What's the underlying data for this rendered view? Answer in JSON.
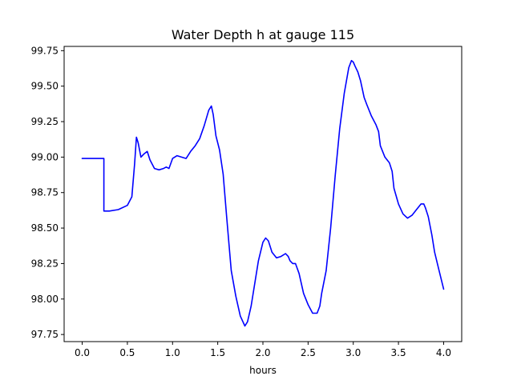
{
  "chart_data": {
    "type": "line",
    "title": "Water Depth h at gauge 115",
    "xlabel": "hours",
    "ylabel": "",
    "xlim": [
      -0.2,
      4.2
    ],
    "ylim": [
      97.7,
      99.78
    ],
    "xticks": [
      0.0,
      0.5,
      1.0,
      1.5,
      2.0,
      2.5,
      3.0,
      3.5,
      4.0
    ],
    "xtick_labels": [
      "0.0",
      "0.5",
      "1.0",
      "1.5",
      "2.0",
      "2.5",
      "3.0",
      "3.5",
      "4.0"
    ],
    "yticks": [
      97.75,
      98.0,
      98.25,
      98.5,
      98.75,
      99.0,
      99.25,
      99.5,
      99.75
    ],
    "ytick_labels": [
      "97.75",
      "98.00",
      "98.25",
      "98.50",
      "98.75",
      "99.00",
      "99.25",
      "99.50",
      "99.75"
    ],
    "grid": false,
    "series": [
      {
        "color": "#0000ff",
        "x": [
          0.0,
          0.24,
          0.24,
          0.3,
          0.4,
          0.5,
          0.55,
          0.58,
          0.6,
          0.62,
          0.65,
          0.68,
          0.72,
          0.75,
          0.8,
          0.85,
          0.9,
          0.93,
          0.96,
          1.0,
          1.05,
          1.1,
          1.15,
          1.2,
          1.25,
          1.3,
          1.35,
          1.4,
          1.43,
          1.45,
          1.48,
          1.52,
          1.56,
          1.6,
          1.65,
          1.7,
          1.75,
          1.8,
          1.83,
          1.87,
          1.9,
          1.95,
          2.0,
          2.03,
          2.06,
          2.1,
          2.15,
          2.2,
          2.25,
          2.28,
          2.3,
          2.33,
          2.36,
          2.4,
          2.45,
          2.5,
          2.55,
          2.6,
          2.63,
          2.65,
          2.7,
          2.75,
          2.8,
          2.85,
          2.9,
          2.95,
          2.98,
          3.0,
          3.02,
          3.05,
          3.08,
          3.1,
          3.12,
          3.15,
          3.2,
          3.25,
          3.28,
          3.3,
          3.35,
          3.4,
          3.43,
          3.45,
          3.5,
          3.55,
          3.6,
          3.65,
          3.7,
          3.75,
          3.78,
          3.8,
          3.83,
          3.87,
          3.9,
          3.95,
          4.0
        ],
        "y": [
          98.99,
          98.99,
          98.62,
          98.62,
          98.63,
          98.66,
          98.72,
          98.95,
          99.14,
          99.1,
          99.0,
          99.02,
          99.04,
          98.98,
          98.92,
          98.91,
          98.92,
          98.93,
          98.92,
          98.99,
          99.01,
          99.0,
          98.99,
          99.04,
          99.08,
          99.13,
          99.22,
          99.33,
          99.36,
          99.3,
          99.15,
          99.05,
          98.88,
          98.57,
          98.2,
          98.02,
          97.88,
          97.81,
          97.84,
          97.95,
          98.07,
          98.27,
          98.4,
          98.43,
          98.41,
          98.33,
          98.29,
          98.3,
          98.32,
          98.3,
          98.27,
          98.25,
          98.25,
          98.18,
          98.04,
          97.96,
          97.9,
          97.9,
          97.95,
          98.04,
          98.2,
          98.5,
          98.87,
          99.2,
          99.45,
          99.63,
          99.68,
          99.67,
          99.64,
          99.6,
          99.54,
          99.48,
          99.42,
          99.37,
          99.29,
          99.23,
          99.18,
          99.08,
          99.0,
          98.96,
          98.9,
          98.78,
          98.67,
          98.6,
          98.57,
          98.59,
          98.63,
          98.67,
          98.67,
          98.64,
          98.58,
          98.45,
          98.33,
          98.2,
          98.07
        ]
      }
    ]
  }
}
